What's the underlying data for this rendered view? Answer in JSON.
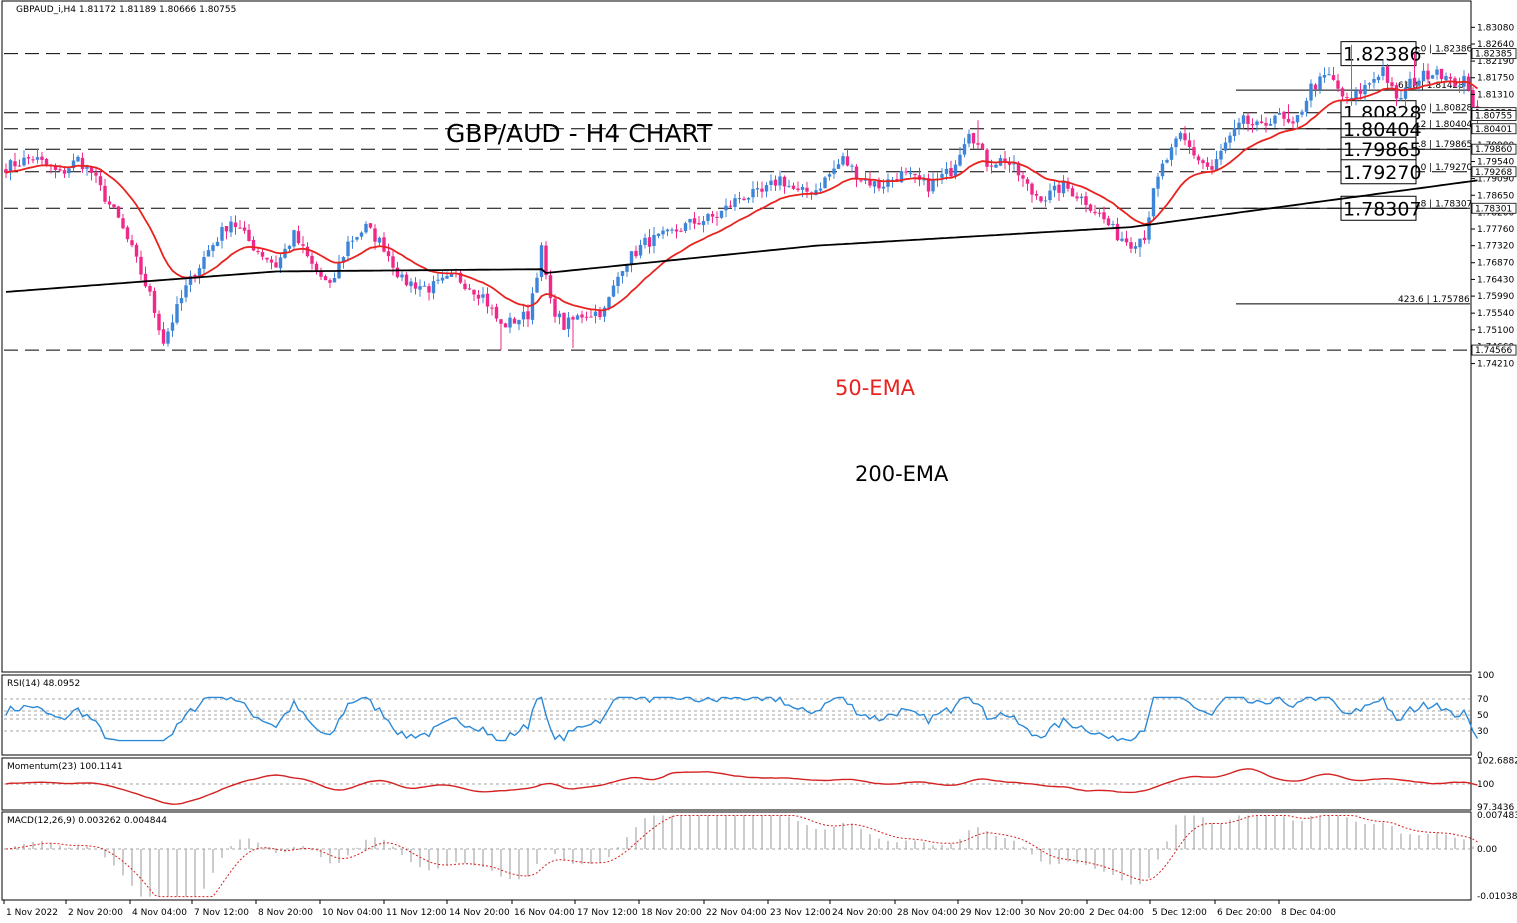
{
  "header": "GBPAUD_i,H4  1.81172 1.81189 1.80666 1.80755",
  "title": "GBP/AUD - H4 CHART",
  "colors": {
    "bull": "#3d85d8",
    "bear": "#f0288a",
    "ema50": "#e8231f",
    "ema200": "#000000",
    "rsi": "#2b8ad8",
    "momentum": "#d42222",
    "macd_hist": "#9a9a9a",
    "macd_signal": "#d42222"
  },
  "chart_data": [
    {
      "type": "candlestick",
      "ylim": [
        1.742,
        1.832
      ],
      "y_ticks": [
        "1.83080",
        "1.82640",
        "1.82190",
        "1.81750",
        "1.81310",
        "1.80870",
        "1.80430",
        "1.79980",
        "1.79540",
        "1.79090",
        "1.78650",
        "1.78200",
        "1.77760",
        "1.77320",
        "1.76870",
        "1.76430",
        "1.75990",
        "1.75540",
        "1.75100",
        "1.74660",
        "1.74210"
      ],
      "x_ticks": [
        "1 Nov 2022",
        "2 Nov 20:00",
        "4 Nov 04:00",
        "7 Nov 12:00",
        "8 Nov 20:00",
        "10 Nov 04:00",
        "11 Nov 12:00",
        "14 Nov 20:00",
        "16 Nov 04:00",
        "17 Nov 12:00",
        "18 Nov 20:00",
        "22 Nov 04:00",
        "23 Nov 12:00",
        "24 Nov 20:00",
        "28 Nov 04:00",
        "29 Nov 12:00",
        "30 Nov 20:00",
        "2 Dec 04:00",
        "5 Dec 12:00",
        "6 Dec 20:00",
        "8 Dec 04:00"
      ],
      "levels": [
        {
          "value": 1.82386,
          "label": "1.82386",
          "axis_tag": "1.82385",
          "fib": "0.0 | 1.82386"
        },
        {
          "value": 1.80828,
          "label": "1.80828",
          "axis_tag": "1.80826",
          "fib": "0.0 | 1.80828"
        },
        {
          "value": 1.80404,
          "label": "1.80404",
          "axis_tag": "1.80401",
          "fib": "7.2 | 1.80404"
        },
        {
          "value": 1.79865,
          "label": "1.79865",
          "axis_tag": "1.79860",
          "fib": "1.8 | 1.79865"
        },
        {
          "value": 1.7927,
          "label": "1.79270",
          "axis_tag": "1.79268",
          "fib": "0.0 | 1.79270"
        },
        {
          "value": 1.78307,
          "label": "1.78307",
          "axis_tag": "1.78301",
          "fib": "1.8 | 1.78307"
        },
        {
          "value": 1.74566,
          "label": "",
          "axis_tag": "1.74566",
          "fib": ""
        }
      ],
      "fib_extra": [
        {
          "value": 1.81423,
          "text": "61.8 | 1.81423"
        },
        {
          "value": 1.75786,
          "text": "423.6 | 1.75786"
        }
      ],
      "price_tag": "1.80755",
      "annotations": {
        "ema50": "50-EMA",
        "ema200": "200-EMA"
      }
    },
    {
      "type": "line",
      "name": "RSI(14) 48.0952",
      "ylim": [
        0,
        100
      ],
      "ticks": [
        "100",
        "70",
        "50",
        "30",
        "0"
      ]
    },
    {
      "type": "line",
      "name": "Momentum(23) 100.1141",
      "ylim": [
        97.0,
        103.0
      ],
      "ticks": [
        "102.6882",
        "100",
        "97.3436"
      ]
    },
    {
      "type": "bar",
      "name": "MACD(12,26,9) 0.003262 0.004844",
      "ylim": [
        -0.0115,
        0.0082
      ],
      "ticks": [
        "0.007483",
        "0.00",
        "-0.010385"
      ]
    }
  ]
}
